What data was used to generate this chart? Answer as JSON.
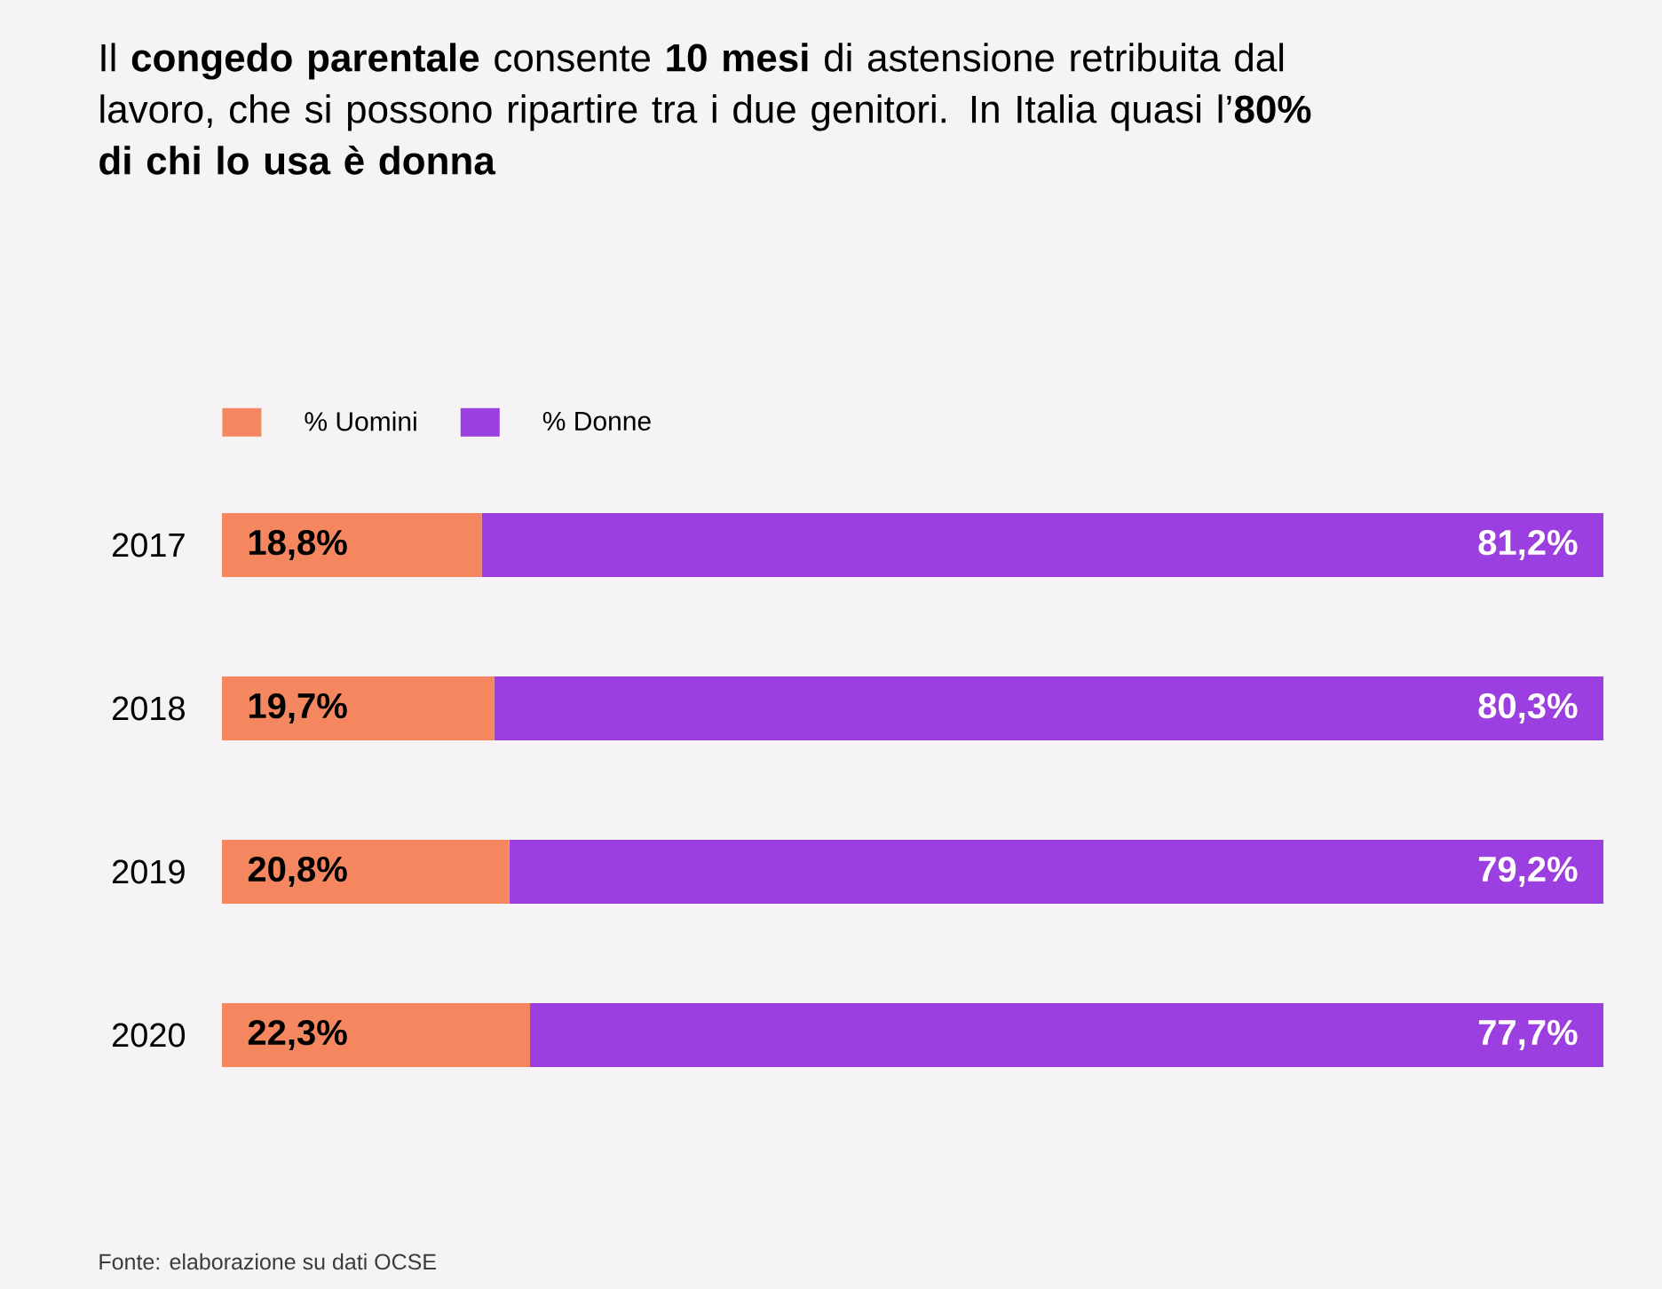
{
  "chart_data": {
    "type": "bar",
    "orientation": "horizontal",
    "stacked": true,
    "title": "Il **congedo parentale** consente **10 mesi** di astensione retribuita dal lavoro, che si possono ripartire tra i due genitori. In Italia quasi l’**80% di chi lo usa è donna**",
    "categories": [
      "2017",
      "2018",
      "2019",
      "2020"
    ],
    "series": [
      {
        "name": "% Uomini",
        "color": "#f4875f",
        "values": [
          18.8,
          19.7,
          20.8,
          22.3
        ],
        "value_labels": [
          "18,8%",
          "19,7%",
          "20,8%",
          "22,3%"
        ]
      },
      {
        "name": "% Donne",
        "color": "#9b3fe0",
        "values": [
          81.2,
          80.3,
          79.2,
          77.7
        ],
        "value_labels": [
          "81,2%",
          "80,3%",
          "79,2%",
          "77,7%"
        ]
      }
    ],
    "xlim": [
      0,
      100
    ],
    "tick_labels": "y",
    "legend": "top left",
    "annotations": [
      "Fonte: elaborazione su dati OCSE"
    ]
  }
}
